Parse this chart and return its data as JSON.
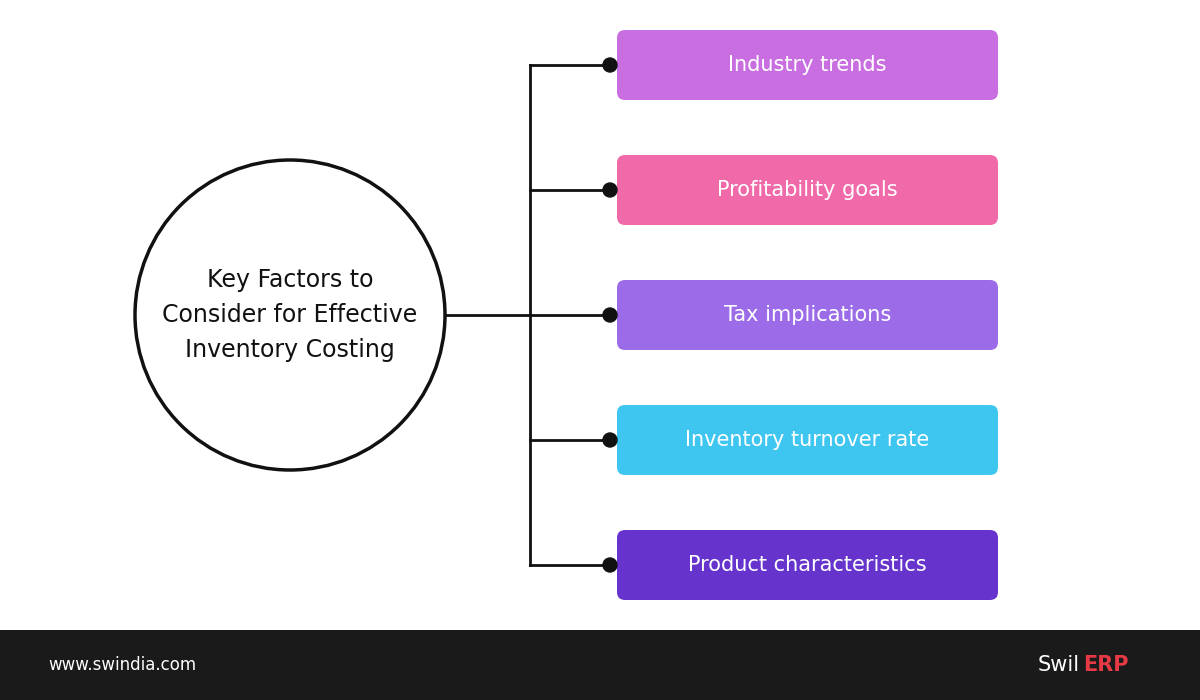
{
  "title": "Key Factors to\nConsider for Effective\nInventory Costing",
  "background_color": "#ffffff",
  "footer_color": "#1a1a1a",
  "footer_text": "www.swindia.com",
  "branch_items": [
    {
      "label": "Industry trends",
      "color": "#c96ee0"
    },
    {
      "label": "Profitability goals",
      "color": "#f06aaa"
    },
    {
      "label": "Tax implications",
      "color": "#9b6be8"
    },
    {
      "label": "Inventory turnover rate",
      "color": "#3fc6f0"
    },
    {
      "label": "Product characteristics",
      "color": "#6633cc"
    }
  ],
  "text_fontsize": 15,
  "title_fontsize": 17
}
